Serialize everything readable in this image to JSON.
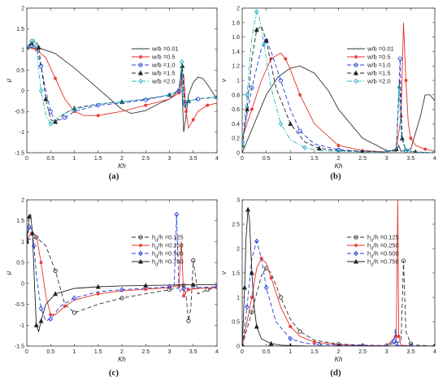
{
  "chart_data": [
    {
      "id": "a",
      "type": "line",
      "panel_label": "(a)",
      "xlabel": "Kh",
      "ylabel": "μ",
      "xlim": [
        0,
        4
      ],
      "ylim": [
        -1.5,
        2
      ],
      "xticks": [
        "0",
        "0.5",
        "1",
        "1.5",
        "2",
        "2.5",
        "3",
        "3.5",
        "4"
      ],
      "yticks": [
        "-1.5",
        "-1",
        "-0.5",
        "0",
        "0.5",
        "1",
        "1.5",
        "2"
      ],
      "legend_position": "upper-right",
      "series": [
        {
          "name": "w/b =0.01",
          "color": "#333333",
          "dash": "solid",
          "marker": "none",
          "x": [
            0,
            0.3,
            0.6,
            1.0,
            1.5,
            2.0,
            2.2,
            2.5,
            2.8,
            3.0,
            3.1,
            3.2,
            3.25,
            3.3,
            3.35,
            3.4,
            3.5,
            3.6,
            3.7,
            3.8,
            4.0
          ],
          "y": [
            1.05,
            1.02,
            0.9,
            0.55,
            0.05,
            -0.45,
            -0.55,
            -0.48,
            -0.3,
            -0.2,
            -0.1,
            0.05,
            0.5,
            -1.0,
            -0.6,
            -0.1,
            0.2,
            0.33,
            0.3,
            0.15,
            -0.2
          ]
        },
        {
          "name": "w/b =0.5",
          "color": "#e8302a",
          "dash": "solid",
          "marker": "*",
          "x": [
            0,
            0.2,
            0.4,
            0.6,
            0.8,
            1.0,
            1.2,
            1.5,
            2.0,
            2.5,
            3.0,
            3.2,
            3.3,
            3.35,
            3.4,
            3.5,
            3.6,
            3.8,
            4.0
          ],
          "y": [
            1.05,
            1.0,
            0.8,
            0.3,
            -0.2,
            -0.5,
            -0.6,
            -0.6,
            -0.5,
            -0.35,
            -0.2,
            -0.05,
            0.4,
            -0.5,
            -0.9,
            -0.7,
            -0.5,
            -0.35,
            -0.3
          ]
        },
        {
          "name": "w/b =1.0",
          "color": "#1f3ee0",
          "dash": "dash",
          "marker": "o",
          "x": [
            0,
            0.1,
            0.2,
            0.3,
            0.4,
            0.5,
            0.6,
            0.8,
            1.0,
            1.5,
            2.0,
            2.5,
            3.0,
            3.2,
            3.28,
            3.32,
            3.4,
            3.6,
            4.0
          ],
          "y": [
            1.05,
            1.1,
            1.05,
            0.6,
            0.0,
            -0.5,
            -0.75,
            -0.65,
            -0.5,
            -0.35,
            -0.3,
            -0.22,
            -0.1,
            0.0,
            0.5,
            -0.3,
            -0.25,
            -0.2,
            -0.15
          ]
        },
        {
          "name": "w/b =1.5",
          "color": "#222222",
          "dash": "dash",
          "marker": "^",
          "x": [
            0,
            0.1,
            0.2,
            0.25,
            0.3,
            0.4,
            0.5,
            0.6,
            0.8,
            1.0,
            1.5,
            2.0,
            2.5,
            3.0,
            3.2,
            3.27,
            3.32,
            3.4,
            3.6,
            4.0
          ],
          "y": [
            1.05,
            1.15,
            1.2,
            1.05,
            0.6,
            -0.2,
            -0.7,
            -0.75,
            -0.55,
            -0.42,
            -0.32,
            -0.27,
            -0.2,
            -0.1,
            0.0,
            0.6,
            -0.4,
            -0.25,
            -0.2,
            -0.15
          ]
        },
        {
          "name": "w/b =2.0",
          "color": "#28b4c8",
          "dash": "dashdot",
          "marker": "d",
          "x": [
            0,
            0.1,
            0.15,
            0.2,
            0.25,
            0.3,
            0.4,
            0.5,
            0.7,
            1.0,
            1.5,
            2.0,
            2.5,
            3.0,
            3.2,
            3.26,
            3.3,
            3.4,
            3.6,
            4.0
          ],
          "y": [
            1.05,
            1.2,
            1.25,
            1.1,
            0.5,
            0.0,
            -0.6,
            -0.8,
            -0.6,
            -0.45,
            -0.32,
            -0.27,
            -0.2,
            -0.1,
            0.0,
            0.7,
            -0.4,
            -0.25,
            -0.2,
            -0.15
          ]
        }
      ]
    },
    {
      "id": "b",
      "type": "line",
      "panel_label": "(b)",
      "xlabel": "Kh",
      "ylabel": "ν",
      "xlim": [
        0,
        4
      ],
      "ylim": [
        0,
        2
      ],
      "xticks": [
        "0",
        "0.5",
        "1",
        "1.5",
        "2",
        "2.5",
        "3",
        "3.5",
        "4"
      ],
      "yticks": [
        "0",
        "0.2",
        "0.4",
        "0.6",
        "0.8",
        "1",
        "1.2",
        "1.4",
        "1.6",
        "1.8",
        "2"
      ],
      "legend_position": "upper-right",
      "series": [
        {
          "name": "w/b =0.01",
          "color": "#333333",
          "dash": "solid",
          "marker": "none",
          "x": [
            0,
            0.25,
            0.5,
            0.75,
            1.0,
            1.2,
            1.5,
            1.8,
            2.0,
            2.5,
            3.0,
            3.2,
            3.25,
            3.3,
            3.5,
            3.7,
            3.8,
            3.9,
            4.0
          ],
          "y": [
            0.0,
            0.4,
            0.8,
            1.05,
            1.17,
            1.2,
            1.1,
            0.85,
            0.6,
            0.2,
            0.03,
            0.02,
            0.1,
            0.02,
            0.05,
            0.5,
            0.8,
            0.8,
            0.72
          ]
        },
        {
          "name": "w/b =0.5",
          "color": "#e8302a",
          "dash": "solid",
          "marker": "*",
          "x": [
            0,
            0.2,
            0.4,
            0.6,
            0.8,
            0.9,
            1.0,
            1.2,
            1.5,
            2.0,
            2.5,
            3.0,
            3.2,
            3.3,
            3.35,
            3.4,
            3.45,
            3.5,
            3.6,
            3.8,
            4.0
          ],
          "y": [
            0.2,
            0.6,
            1.0,
            1.3,
            1.38,
            1.3,
            1.15,
            0.8,
            0.4,
            0.1,
            0.03,
            0.01,
            0.05,
            0.5,
            1.8,
            1.0,
            0.4,
            0.2,
            0.1,
            0.05,
            0.02
          ]
        },
        {
          "name": "w/b =1.0",
          "color": "#1f3ee0",
          "dash": "dash",
          "marker": "o",
          "x": [
            0,
            0.2,
            0.4,
            0.5,
            0.6,
            0.8,
            1.0,
            1.2,
            1.5,
            2.0,
            2.5,
            3.0,
            3.2,
            3.28,
            3.32,
            3.4,
            3.6,
            4.0
          ],
          "y": [
            0.15,
            0.9,
            1.45,
            1.55,
            1.4,
            1.0,
            0.6,
            0.3,
            0.12,
            0.04,
            0.02,
            0.01,
            0.05,
            1.3,
            0.2,
            0.03,
            0.01,
            0.0
          ]
        },
        {
          "name": "w/b =1.5",
          "color": "#222222",
          "dash": "dash",
          "marker": "^",
          "x": [
            0,
            0.1,
            0.2,
            0.3,
            0.4,
            0.5,
            0.7,
            1.0,
            1.3,
            1.6,
            2.0,
            2.5,
            3.0,
            3.2,
            3.27,
            3.32,
            3.4,
            3.6,
            4.0
          ],
          "y": [
            0.1,
            0.6,
            1.3,
            1.7,
            1.75,
            1.55,
            0.9,
            0.4,
            0.15,
            0.06,
            0.03,
            0.02,
            0.01,
            0.05,
            1.0,
            0.2,
            0.03,
            0.01,
            0.0
          ]
        },
        {
          "name": "w/b =2.0",
          "color": "#28b4c8",
          "dash": "dashdot",
          "marker": "d",
          "x": [
            0,
            0.1,
            0.2,
            0.3,
            0.35,
            0.45,
            0.6,
            0.8,
            1.0,
            1.3,
            1.6,
            2.0,
            2.5,
            3.0,
            3.2,
            3.26,
            3.3,
            3.4,
            3.6,
            4.0
          ],
          "y": [
            0.1,
            0.8,
            1.6,
            1.95,
            1.9,
            1.5,
            0.9,
            0.4,
            0.18,
            0.07,
            0.03,
            0.02,
            0.01,
            0.01,
            0.05,
            0.9,
            0.2,
            0.03,
            0.01,
            0.0
          ]
        }
      ]
    },
    {
      "id": "c",
      "type": "line",
      "panel_label": "(c)",
      "xlabel": "Kh",
      "ylabel": "μ",
      "xlim": [
        0,
        4
      ],
      "ylim": [
        -1.5,
        2
      ],
      "xticks": [
        "0",
        "0.5",
        "1",
        "1.5",
        "2",
        "2.5",
        "3",
        "3.5",
        "4"
      ],
      "yticks": [
        "-1.5",
        "-1",
        "-0.5",
        "0",
        "0.5",
        "1",
        "1.5",
        "2"
      ],
      "legend_position": "upper-right",
      "series": [
        {
          "name": "h_d/h =0.125",
          "color": "#333333",
          "dash": "dash",
          "marker": "o",
          "x": [
            0,
            0.2,
            0.4,
            0.6,
            0.8,
            1.0,
            1.5,
            2.0,
            2.5,
            3.0,
            3.2,
            3.3,
            3.35,
            3.4,
            3.45,
            3.5,
            3.6,
            3.8,
            4.0
          ],
          "y": [
            1.05,
            1.1,
            0.9,
            0.3,
            -0.5,
            -0.7,
            -0.5,
            -0.35,
            -0.25,
            -0.15,
            -0.1,
            -0.05,
            -0.3,
            -0.9,
            -0.6,
            0.55,
            -0.25,
            -0.15,
            -0.1
          ]
        },
        {
          "name": "h_d/h =0.250",
          "color": "#e8302a",
          "dash": "solid",
          "marker": "*",
          "x": [
            0,
            0.1,
            0.2,
            0.3,
            0.4,
            0.5,
            0.6,
            0.8,
            1.0,
            1.5,
            2.0,
            2.5,
            3.0,
            3.2,
            3.25,
            3.3,
            3.35,
            3.4,
            3.6,
            4.0
          ],
          "y": [
            1.05,
            1.2,
            1.15,
            0.5,
            -0.3,
            -0.75,
            -0.75,
            -0.55,
            -0.4,
            -0.25,
            -0.18,
            -0.14,
            -0.1,
            -0.05,
            1.0,
            -0.3,
            -0.2,
            -0.15,
            -0.12,
            -0.1
          ]
        },
        {
          "name": "h_d/h =0.500",
          "color": "#1f3ee0",
          "dash": "dash",
          "marker": "d",
          "x": [
            0,
            0.05,
            0.1,
            0.15,
            0.2,
            0.3,
            0.4,
            0.5,
            0.7,
            1.0,
            1.5,
            2.0,
            2.5,
            3.0,
            3.1,
            3.15,
            3.2,
            3.3,
            3.6,
            4.0
          ],
          "y": [
            1.05,
            1.35,
            1.3,
            0.9,
            0.2,
            -0.6,
            -0.9,
            -0.85,
            -0.55,
            -0.35,
            -0.2,
            -0.15,
            -0.12,
            -0.08,
            -0.05,
            1.65,
            -0.2,
            -0.12,
            -0.1,
            -0.08
          ]
        },
        {
          "name": "h_d/h =0.750",
          "color": "#222222",
          "dash": "solid",
          "marker": "^",
          "x": [
            0,
            0.05,
            0.08,
            0.12,
            0.16,
            0.2,
            0.25,
            0.3,
            0.4,
            0.6,
            1.0,
            1.5,
            2.0,
            2.5,
            3.0,
            3.5,
            4.0
          ],
          "y": [
            1.0,
            1.6,
            1.65,
            1.2,
            0.0,
            -1.0,
            -1.15,
            -0.9,
            -0.5,
            -0.25,
            -0.12,
            -0.08,
            -0.06,
            -0.05,
            -0.04,
            -0.03,
            -0.03
          ]
        }
      ]
    },
    {
      "id": "d",
      "type": "line",
      "panel_label": "(d)",
      "xlabel": "Kh",
      "ylabel": "ν",
      "xlim": [
        0,
        4
      ],
      "ylim": [
        0,
        3
      ],
      "xticks": [
        "0",
        "0.5",
        "1",
        "1.5",
        "2",
        "2.5",
        "3",
        "3.5",
        "4"
      ],
      "yticks": [
        "0",
        "0.5",
        "1",
        "1.5",
        "2",
        "2.5",
        "3"
      ],
      "legend_position": "upper-right",
      "series": [
        {
          "name": "h_d/h =0.125",
          "color": "#333333",
          "dash": "dash",
          "marker": "o",
          "x": [
            0,
            0.2,
            0.4,
            0.5,
            0.6,
            0.8,
            1.0,
            1.2,
            1.5,
            2.0,
            2.5,
            3.0,
            3.3,
            3.35,
            3.4,
            3.5,
            3.6,
            4.0
          ],
          "y": [
            0.0,
            0.7,
            1.45,
            1.6,
            1.5,
            1.0,
            0.55,
            0.3,
            0.12,
            0.04,
            0.02,
            0.01,
            0.1,
            1.75,
            0.3,
            0.05,
            0.02,
            0.0
          ]
        },
        {
          "name": "h_d/h =0.250",
          "color": "#e8302a",
          "dash": "solid",
          "marker": "*",
          "x": [
            0,
            0.2,
            0.3,
            0.4,
            0.5,
            0.6,
            0.8,
            1.0,
            1.2,
            1.5,
            2.0,
            2.5,
            3.0,
            3.2,
            3.23,
            3.25,
            3.3,
            3.5,
            4.0
          ],
          "y": [
            0.0,
            1.0,
            1.6,
            1.8,
            1.7,
            1.4,
            0.8,
            0.4,
            0.2,
            0.08,
            0.03,
            0.01,
            0.01,
            0.2,
            3.0,
            0.2,
            0.02,
            0.0,
            0.0
          ]
        },
        {
          "name": "h_d/h =0.500",
          "color": "#1f3ee0",
          "dash": "dash",
          "marker": "d",
          "x": [
            0,
            0.1,
            0.2,
            0.3,
            0.4,
            0.5,
            0.7,
            1.0,
            1.3,
            1.6,
            2.0,
            2.5,
            3.0,
            3.15,
            3.18,
            3.2,
            3.25,
            3.5,
            4.0
          ],
          "y": [
            0.0,
            0.8,
            1.8,
            2.15,
            1.8,
            1.2,
            0.5,
            0.15,
            0.06,
            0.03,
            0.02,
            0.01,
            0.01,
            0.1,
            0.35,
            0.05,
            0.01,
            0.0,
            0.0
          ]
        },
        {
          "name": "h_d/h =0.750",
          "color": "#222222",
          "dash": "solid",
          "marker": "^",
          "x": [
            0,
            0.05,
            0.08,
            0.12,
            0.15,
            0.2,
            0.25,
            0.3,
            0.4,
            0.6,
            0.8,
            1.0,
            1.5,
            2.0,
            3.0,
            4.0
          ],
          "y": [
            0.0,
            1.2,
            2.2,
            2.8,
            2.6,
            1.5,
            0.8,
            0.4,
            0.15,
            0.05,
            0.02,
            0.01,
            0.0,
            0.0,
            0.0,
            0.0
          ]
        }
      ]
    }
  ]
}
